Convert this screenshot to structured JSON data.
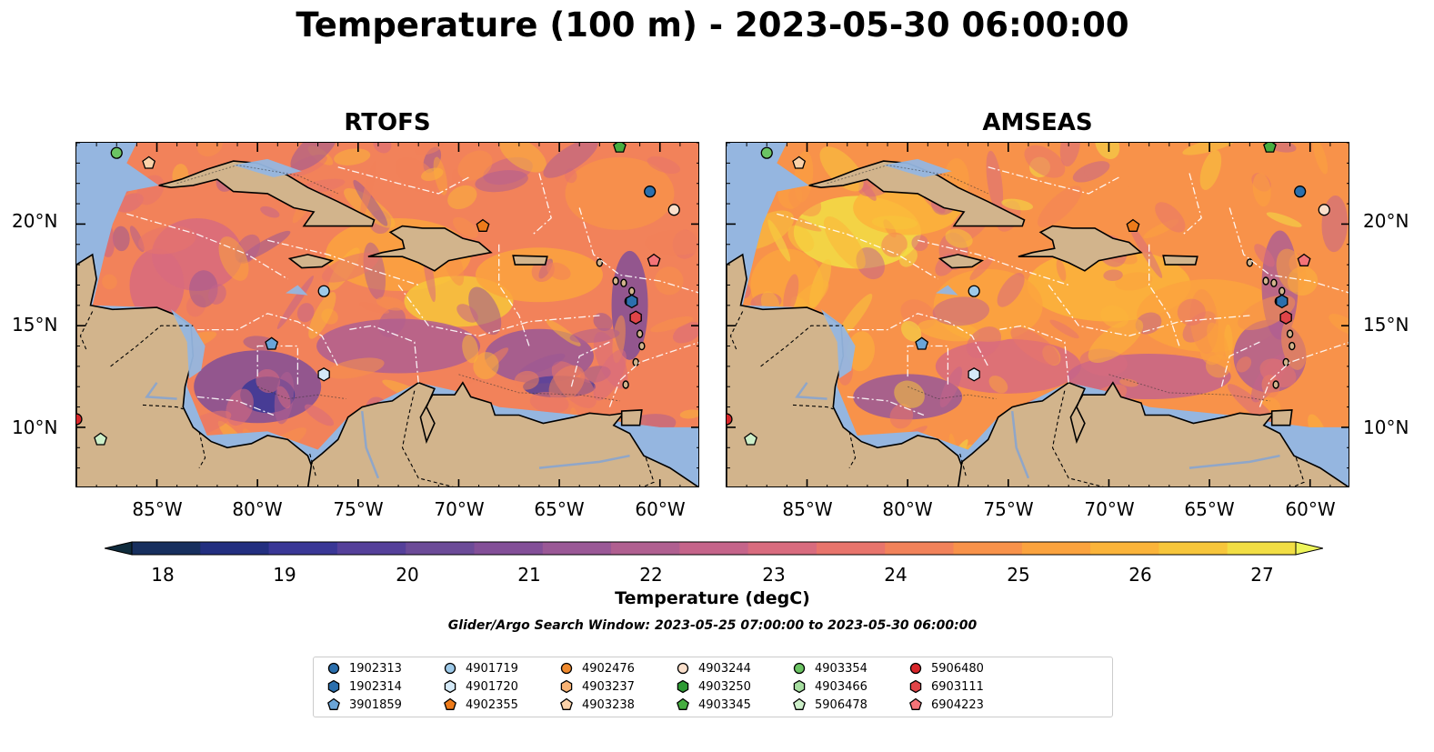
{
  "title": "Temperature (100 m) - 2023-05-30 06:00:00",
  "panels": [
    {
      "title": "RTOFS",
      "lat_ticks": [
        "20°N",
        "15°N",
        "10°N"
      ],
      "lon_ticks": [
        "85°W",
        "80°W",
        "75°W",
        "70°W",
        "65°W",
        "60°W"
      ]
    },
    {
      "title": "AMSEAS",
      "lat_ticks": [
        "20°N",
        "15°N",
        "10°N"
      ],
      "lon_ticks": [
        "85°W",
        "80°W",
        "75°W",
        "70°W",
        "65°W",
        "60°W"
      ]
    }
  ],
  "map_extent": {
    "lon": [
      -89,
      -58
    ],
    "lat": [
      7,
      24
    ]
  },
  "colorbar": {
    "label": "Temperature (degC)",
    "ticks": [
      "18",
      "19",
      "20",
      "21",
      "22",
      "23",
      "24",
      "25",
      "26",
      "27"
    ],
    "range": [
      18,
      27
    ],
    "colors": [
      "#0f2b3c",
      "#172f5e",
      "#232f80",
      "#3a3796",
      "#55409a",
      "#6c4b98",
      "#834f98",
      "#9a5896",
      "#b05f90",
      "#c5648a",
      "#d86b7e",
      "#e8746c",
      "#f2825a",
      "#f8924a",
      "#fba33e",
      "#fbb43a",
      "#f7c63b",
      "#f2de44",
      "#eef55a"
    ]
  },
  "search_window": "Glider/Argo Search Window: 2023-05-25 07:00:00 to 2023-05-30 06:00:00",
  "legend": [
    {
      "label": "1902313",
      "shape": "circle",
      "color": "#2b6fad"
    },
    {
      "label": "1902314",
      "shape": "hexagon",
      "color": "#2b6fad"
    },
    {
      "label": "3901859",
      "shape": "pentagon",
      "color": "#6aa5d8"
    },
    {
      "label": "4901719",
      "shape": "circle",
      "color": "#9ecae9"
    },
    {
      "label": "4901720",
      "shape": "hexagon",
      "color": "#d4e9f7"
    },
    {
      "label": "4902355",
      "shape": "pentagon",
      "color": "#ee7b1a"
    },
    {
      "label": "4902476",
      "shape": "circle",
      "color": "#f08a2e"
    },
    {
      "label": "4903237",
      "shape": "hexagon",
      "color": "#f9b374"
    },
    {
      "label": "4903238",
      "shape": "pentagon",
      "color": "#fbd2a9"
    },
    {
      "label": "4903244",
      "shape": "circle",
      "color": "#fbe0cc"
    },
    {
      "label": "4903250",
      "shape": "hexagon",
      "color": "#2e9a34"
    },
    {
      "label": "4903345",
      "shape": "pentagon",
      "color": "#46ad40"
    },
    {
      "label": "4903354",
      "shape": "circle",
      "color": "#6bc463"
    },
    {
      "label": "4903466",
      "shape": "hexagon",
      "color": "#a6dea0"
    },
    {
      "label": "5906478",
      "shape": "pentagon",
      "color": "#cdefc9"
    },
    {
      "label": "5906480",
      "shape": "circle",
      "color": "#d8262a"
    },
    {
      "label": "6903111",
      "shape": "hexagon",
      "color": "#e04448"
    },
    {
      "label": "6904223",
      "shape": "pentagon",
      "color": "#f47378"
    }
  ],
  "platforms": [
    {
      "id": "4903345",
      "lon": -62.0,
      "lat": 23.8
    },
    {
      "id": "4903354",
      "lon": -87.0,
      "lat": 23.5
    },
    {
      "id": "4903238",
      "lon": -85.4,
      "lat": 23.0
    },
    {
      "id": "1902313",
      "lon": -60.5,
      "lat": 21.6
    },
    {
      "id": "4903244",
      "lon": -59.3,
      "lat": 20.7
    },
    {
      "id": "4902355",
      "lon": -68.8,
      "lat": 19.9
    },
    {
      "id": "6904223",
      "lon": -60.3,
      "lat": 18.2
    },
    {
      "id": "4901719",
      "lon": -76.7,
      "lat": 16.7
    },
    {
      "id": "1902314",
      "lon": -61.4,
      "lat": 16.2
    },
    {
      "id": "6903111",
      "lon": -61.2,
      "lat": 15.4
    },
    {
      "id": "3901859",
      "lon": -79.3,
      "lat": 14.1
    },
    {
      "id": "4901720",
      "lon": -76.7,
      "lat": 12.6
    },
    {
      "id": "5906480",
      "lon": -89.0,
      "lat": 10.4
    },
    {
      "id": "5906478",
      "lon": -87.8,
      "lat": 9.4
    }
  ]
}
